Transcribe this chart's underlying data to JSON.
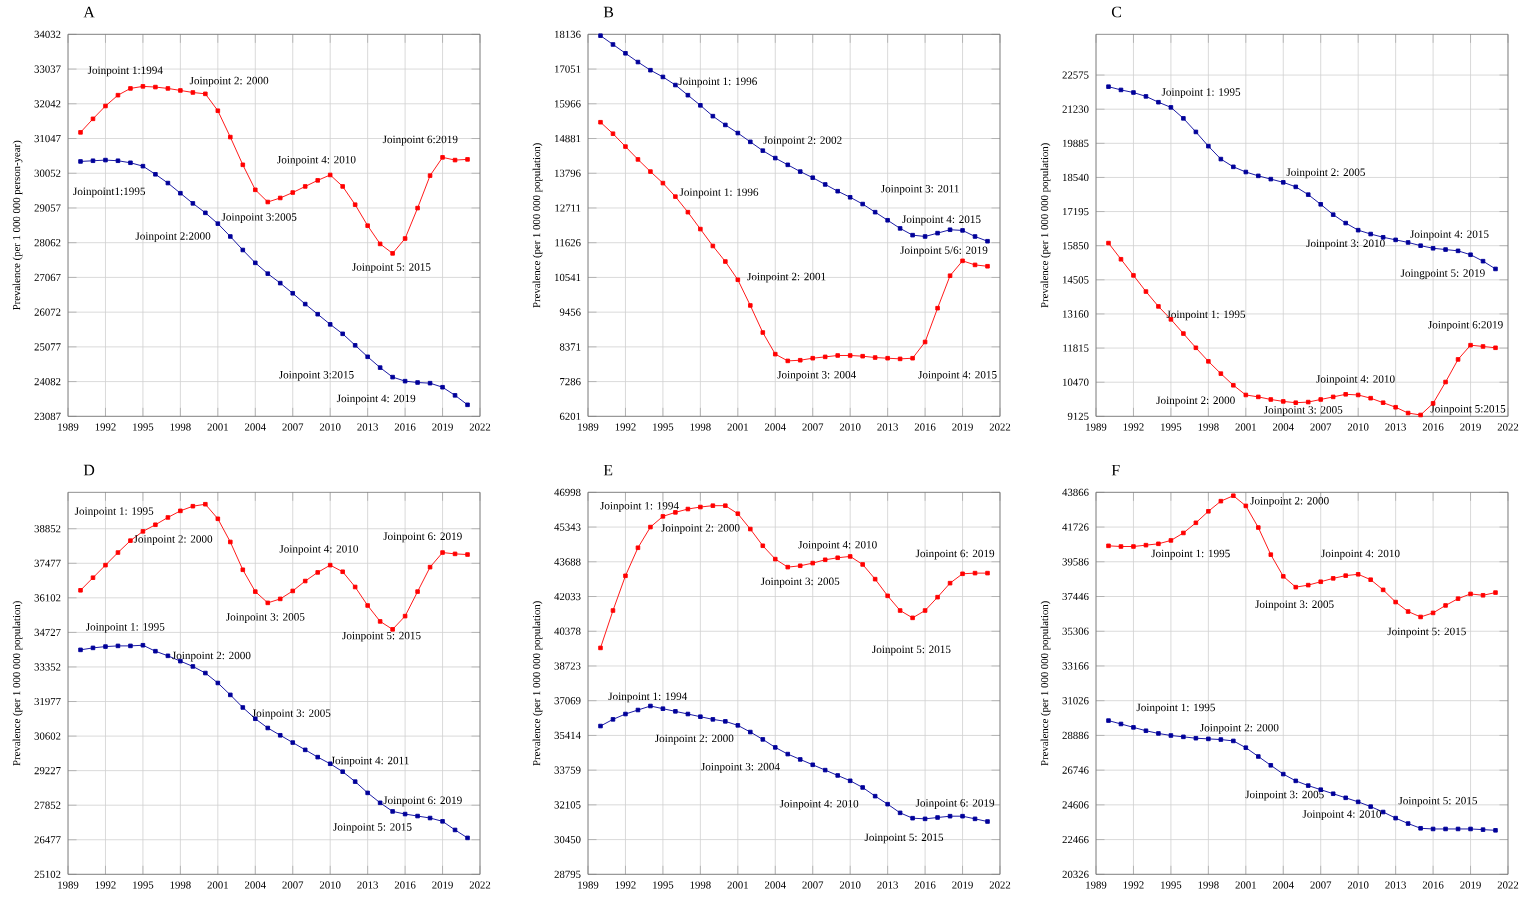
{
  "chart_data": [
    {
      "type": "line",
      "title": "A",
      "ylabel": "Prevalence (per 1 000 000 person-year)",
      "grid": true,
      "marker": "square",
      "x": [
        1990,
        1991,
        1992,
        1993,
        1994,
        1995,
        1996,
        1997,
        1998,
        1999,
        2000,
        2001,
        2002,
        2003,
        2004,
        2005,
        2006,
        2007,
        2008,
        2009,
        2010,
        2011,
        2012,
        2013,
        2014,
        2015,
        2016,
        2017,
        2018,
        2019,
        2020,
        2021
      ],
      "xlim": [
        1989,
        2022
      ],
      "xticks": [
        1989,
        1992,
        1995,
        1998,
        2001,
        2004,
        2007,
        2010,
        2013,
        2016,
        2019,
        2022
      ],
      "ylim": [
        23087,
        34032
      ],
      "yticks": [
        23087,
        24082,
        25077,
        26072,
        27067,
        28062,
        29057,
        30052,
        31047,
        32042,
        33037,
        34032
      ],
      "series": [
        {
          "color": "#ff0000",
          "values": [
            31223,
            31611,
            31979,
            32289,
            32482,
            32541,
            32521,
            32482,
            32424,
            32366,
            32327,
            31843,
            31088,
            30294,
            29577,
            29228,
            29344,
            29499,
            29674,
            29848,
            30003,
            29674,
            29151,
            28550,
            28027,
            27756,
            28182,
            29054,
            29984,
            30507,
            30429,
            30449
          ]
        },
        {
          "color": "#000099",
          "values": [
            30390,
            30410,
            30429,
            30410,
            30352,
            30255,
            30022,
            29771,
            29480,
            29189,
            28918,
            28608,
            28240,
            27853,
            27485,
            27175,
            26904,
            26613,
            26303,
            26013,
            25722,
            25451,
            25122,
            24793,
            24483,
            24211,
            24095,
            24056,
            24037,
            23921,
            23688,
            23417
          ]
        }
      ],
      "annotations": [
        "Joinpoint 1:1994",
        "Joinpoint 2: 2000",
        "Joinpoint1:1995",
        "Joinpoint 2:2000",
        "Joinpoint 3:2005",
        "Joinpoint 4: 2010",
        "Joinpoint 6:2019",
        "Joinpoint 5: 2015",
        "Joinpoint 3:2015",
        "Joinpoint 4: 2019"
      ]
    },
    {
      "type": "line",
      "title": "B",
      "ylabel": "Prevalence (per 1 000 000 population)",
      "grid": true,
      "marker": "square",
      "x": [
        1990,
        1991,
        1992,
        1993,
        1994,
        1995,
        1996,
        1997,
        1998,
        1999,
        2000,
        2001,
        2002,
        2003,
        2004,
        2005,
        2006,
        2007,
        2008,
        2009,
        2010,
        2011,
        2012,
        2013,
        2014,
        2015,
        2016,
        2017,
        2018,
        2019,
        2020,
        2021
      ],
      "xlim": [
        1989,
        2022
      ],
      "xticks": [
        1989,
        1992,
        1995,
        1998,
        2001,
        2004,
        2007,
        2010,
        2013,
        2016,
        2019,
        2022
      ],
      "ylim": [
        6201,
        18136
      ],
      "yticks": [
        6201,
        7286,
        8371,
        9456,
        10541,
        11626,
        12711,
        13796,
        14881,
        15966,
        17051,
        18136
      ],
      "series": [
        {
          "color": "#ff0000",
          "values": [
            15390,
            15031,
            14629,
            14228,
            13848,
            13488,
            13066,
            12580,
            12052,
            11524,
            11038,
            10468,
            9665,
            8820,
            8144,
            7933,
            7954,
            8017,
            8059,
            8102,
            8102,
            8080,
            8038,
            8017,
            7996,
            8017,
            8524,
            9580,
            10594,
            11059,
            10932,
            10890
          ]
        },
        {
          "color": "#000099",
          "values": [
            18094,
            17819,
            17544,
            17270,
            17016,
            16805,
            16552,
            16235,
            15918,
            15580,
            15305,
            15052,
            14777,
            14502,
            14270,
            14059,
            13848,
            13657,
            13446,
            13235,
            13045,
            12834,
            12580,
            12327,
            12073,
            11862,
            11820,
            11925,
            12031,
            12010,
            11820,
            11672
          ]
        }
      ],
      "annotations": [
        "Joinpoint 1: 1996",
        "Joinpoint 2: 2002",
        "Joinpoint 3: 2011",
        "Joinpoint 4: 2015",
        "Joinpoint 5/6: 2019",
        "Joinpoint 1: 1996",
        "Joinpoint 2: 2001",
        "Joinpoint 3: 2004",
        "Joinpoint 4: 2015"
      ]
    },
    {
      "type": "line",
      "title": "C",
      "ylabel": "Prevalence (per 1 000 000 population)",
      "grid": true,
      "marker": "square",
      "x": [
        1990,
        1991,
        1992,
        1993,
        1994,
        1995,
        1996,
        1997,
        1998,
        1999,
        2000,
        2001,
        2002,
        2003,
        2004,
        2005,
        2006,
        2007,
        2008,
        2009,
        2010,
        2011,
        2012,
        2013,
        2014,
        2015,
        2016,
        2017,
        2018,
        2019,
        2020,
        2021
      ],
      "xlim": [
        1989,
        2022
      ],
      "xticks": [
        1989,
        1992,
        1995,
        1998,
        2001,
        2004,
        2007,
        2010,
        2013,
        2016,
        2019,
        2022
      ],
      "ylim": [
        9125,
        24180
      ],
      "yticks": [
        9125,
        10470,
        11815,
        13160,
        14505,
        15850,
        17195,
        18540,
        19885,
        21230,
        22575
      ],
      "series": [
        {
          "color": "#ff0000",
          "values": [
            15953,
            15316,
            14679,
            14043,
            13457,
            12947,
            12387,
            11827,
            11292,
            10808,
            10349,
            9967,
            9891,
            9789,
            9713,
            9662,
            9687,
            9789,
            9891,
            9993,
            9967,
            9840,
            9662,
            9483,
            9254,
            9178,
            9636,
            10477,
            11368,
            11929,
            11878,
            11827
          ]
        },
        {
          "color": "#000099",
          "values": [
            22117,
            21989,
            21887,
            21734,
            21505,
            21301,
            20869,
            20334,
            19773,
            19264,
            18958,
            18754,
            18602,
            18474,
            18347,
            18169,
            17863,
            17481,
            17073,
            16742,
            16462,
            16309,
            16182,
            16080,
            15978,
            15851,
            15749,
            15698,
            15647,
            15494,
            15240,
            14934
          ]
        }
      ],
      "annotations": [
        "Joinpoint 1: 1995",
        "Joinpoint 2: 2005",
        "Joinpoint 3: 2010",
        "Joinpoint 4: 2015",
        "Joingpoint 5: 2019",
        "Joinpoint 1: 1995",
        "Joinpoint 2: 2000",
        "Joinpoint 3: 2005",
        "Joinpoint 4: 2010",
        "Joinpoint 5:2015",
        "Joinpoint 6:2019"
      ]
    },
    {
      "type": "line",
      "title": "D",
      "ylabel": "Prevalence (per 1 000 000 population)",
      "grid": true,
      "marker": "square",
      "x": [
        1990,
        1991,
        1992,
        1993,
        1994,
        1995,
        1996,
        1997,
        1998,
        1999,
        2000,
        2001,
        2002,
        2003,
        2004,
        2005,
        2006,
        2007,
        2008,
        2009,
        2010,
        2011,
        2012,
        2013,
        2014,
        2015,
        2016,
        2017,
        2018,
        2019,
        2020,
        2021
      ],
      "xlim": [
        1989,
        2022
      ],
      "xticks": [
        1989,
        1992,
        1995,
        1998,
        2001,
        2004,
        2007,
        2010,
        2013,
        2016,
        2019,
        2022
      ],
      "ylim": [
        25102,
        40300
      ],
      "yticks": [
        25102,
        26477,
        27852,
        29227,
        30602,
        31977,
        33352,
        34727,
        36102,
        37477,
        38852
      ],
      "series": [
        {
          "color": "#ff0000",
          "values": [
            36402,
            36903,
            37403,
            37904,
            38378,
            38747,
            39010,
            39300,
            39563,
            39748,
            39827,
            39247,
            38325,
            37219,
            36350,
            35902,
            36060,
            36376,
            36771,
            37114,
            37403,
            37140,
            36534,
            35797,
            35164,
            34848,
            35375,
            36350,
            37324,
            37904,
            37851,
            37825
          ]
        },
        {
          "color": "#000099",
          "values": [
            34032,
            34111,
            34163,
            34190,
            34190,
            34216,
            33979,
            33795,
            33584,
            33373,
            33110,
            32715,
            32241,
            31740,
            31292,
            30924,
            30634,
            30344,
            30054,
            29765,
            29501,
            29185,
            28790,
            28342,
            27947,
            27605,
            27499,
            27420,
            27341,
            27210,
            26867,
            26551
          ]
        }
      ],
      "annotations": [
        "Joinpoint 1: 1995",
        "Joinpoint 2: 2000",
        "Joinpoint 4: 2010",
        "Joinpoint 6: 2019",
        "Joinpoint 3: 2005",
        "Joinpoint 5: 2015",
        "Joinpoint 1: 1995",
        "Joinpoint 2: 2000",
        "Joinpoint 3: 2005",
        "Joinpoint 4: 2011",
        "Joinpoint 6: 2019",
        "Joinpoint 5: 2015"
      ]
    },
    {
      "type": "line",
      "title": "E",
      "ylabel": "Prevalence (per 1 000 000 population)",
      "grid": true,
      "marker": "square",
      "x": [
        1990,
        1991,
        1992,
        1993,
        1994,
        1995,
        1996,
        1997,
        1998,
        1999,
        2000,
        2001,
        2002,
        2003,
        2004,
        2005,
        2006,
        2007,
        2008,
        2009,
        2010,
        2011,
        2012,
        2013,
        2014,
        2015,
        2016,
        2017,
        2018,
        2019,
        2020,
        2021
      ],
      "xlim": [
        1989,
        2022
      ],
      "xticks": [
        1989,
        1992,
        1995,
        1998,
        2001,
        2004,
        2007,
        2010,
        2013,
        2016,
        2019,
        2022
      ],
      "ylim": [
        28795,
        46998
      ],
      "yticks": [
        28795,
        30450,
        32105,
        33759,
        35414,
        37069,
        38723,
        40378,
        42033,
        43688,
        45343,
        46998
      ],
      "series": [
        {
          "color": "#ff0000",
          "values": [
            39584,
            41366,
            43020,
            44357,
            45343,
            45852,
            46043,
            46202,
            46298,
            46362,
            46362,
            45980,
            45248,
            44452,
            43816,
            43434,
            43498,
            43625,
            43784,
            43880,
            43943,
            43561,
            42861,
            42066,
            41366,
            41016,
            41366,
            42002,
            42670,
            43116,
            43148,
            43148
          ]
        },
        {
          "color": "#000099",
          "values": [
            35861,
            36179,
            36434,
            36625,
            36816,
            36688,
            36561,
            36434,
            36306,
            36179,
            36084,
            35893,
            35575,
            35225,
            34843,
            34525,
            34270,
            34015,
            33761,
            33506,
            33252,
            32934,
            32520,
            32138,
            31724,
            31470,
            31438,
            31502,
            31565,
            31565,
            31438,
            31311
          ]
        }
      ],
      "annotations": [
        "Joinpoint 1: 1994",
        "Joinpoint 2: 2000",
        "Joinpoint 4: 2010",
        "Joinpoint 6: 2019",
        "Joinpoint 3: 2005",
        "Joinpoint 5: 2015",
        "Joinpoint 1: 1994",
        "Joinpoint 2: 2000",
        "Joinpoint 3: 2004",
        "Joinpoint 4: 2010",
        "Joinpoint 6: 2019",
        "Joinpoint 5: 2015"
      ]
    },
    {
      "type": "line",
      "title": "F",
      "ylabel": "Prevalence (per 1 000 000 population)",
      "grid": true,
      "marker": "square",
      "x": [
        1990,
        1991,
        1992,
        1993,
        1994,
        1995,
        1996,
        1997,
        1998,
        1999,
        2000,
        2001,
        2002,
        2003,
        2004,
        2005,
        2006,
        2007,
        2008,
        2009,
        2010,
        2011,
        2012,
        2013,
        2014,
        2015,
        2016,
        2017,
        2018,
        2019,
        2020,
        2021
      ],
      "xlim": [
        1989,
        2022
      ],
      "xticks": [
        1989,
        1992,
        1995,
        1998,
        2001,
        2004,
        2007,
        2010,
        2013,
        2016,
        2019,
        2022
      ],
      "ylim": [
        20326,
        43866
      ],
      "yticks": [
        20326,
        22466,
        24606,
        26746,
        28886,
        31026,
        33166,
        35306,
        37446,
        39586,
        41726,
        43866
      ],
      "series": [
        {
          "color": "#ff0000",
          "values": [
            40569,
            40527,
            40527,
            40610,
            40694,
            40902,
            41362,
            41988,
            42697,
            43323,
            43657,
            43031,
            41696,
            40026,
            38690,
            38022,
            38148,
            38356,
            38565,
            38732,
            38815,
            38482,
            37855,
            37104,
            36520,
            36186,
            36436,
            36895,
            37313,
            37605,
            37522,
            37688
          ]
        },
        {
          "color": "#000099",
          "values": [
            29800,
            29591,
            29382,
            29174,
            29007,
            28881,
            28798,
            28714,
            28673,
            28631,
            28547,
            28130,
            27587,
            27045,
            26502,
            26085,
            25793,
            25542,
            25292,
            25041,
            24791,
            24499,
            24165,
            23789,
            23455,
            23163,
            23121,
            23121,
            23121,
            23121,
            23080,
            23038
          ]
        }
      ],
      "annotations": [
        "Joinpoint 2: 2000",
        "Joinpoint 1: 1995",
        "Joinpoint 4: 2010",
        "Joinpoint 3: 2005",
        "Joinpoint 5: 2015",
        "Joinpoint 1: 1995",
        "Joinpoint 2: 2000",
        "Joinpoint 3: 2005",
        "Joinpoint 4: 2010",
        "Joinpoint 5: 2015"
      ]
    }
  ]
}
